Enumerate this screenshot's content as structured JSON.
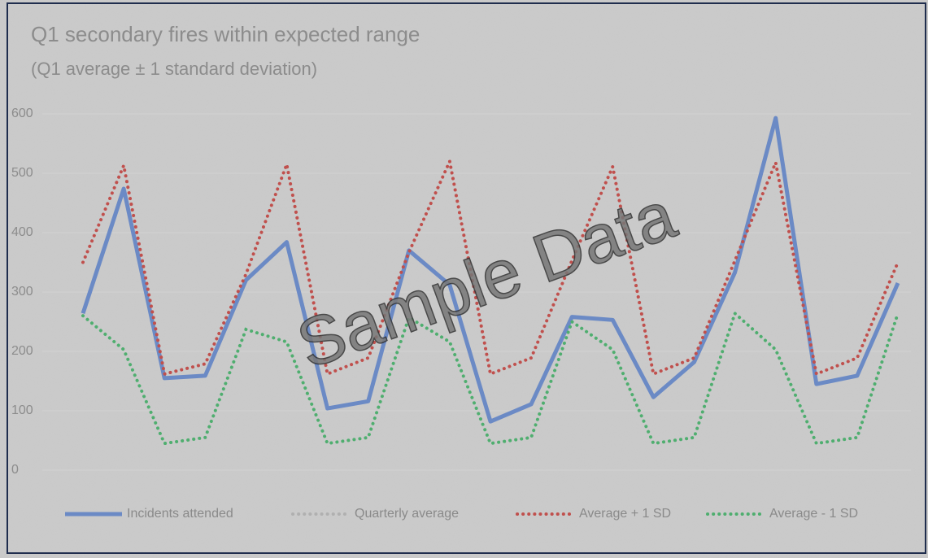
{
  "chart_data": {
    "type": "line",
    "title": "Q1 secondary fires within expected range",
    "subtitle": "(Q1 average ± 1 standard deviation)",
    "watermark": "Sample Data",
    "categories": [
      null,
      null,
      null,
      null,
      null,
      null,
      null,
      null,
      null,
      null,
      null,
      null,
      null,
      null,
      null,
      null,
      null,
      null,
      null,
      null,
      null
    ],
    "series": [
      {
        "name": "Incidents attended",
        "color": "#5b7fc4",
        "style": "solid",
        "values": [
          264,
          474,
          155,
          159,
          320,
          384,
          104,
          116,
          370,
          312,
          82,
          111,
          258,
          253,
          123,
          182,
          333,
          593,
          145,
          159,
          315
        ]
      },
      {
        "name": "Quarterly average",
        "color": "#b0b0b0",
        "style": "dotted",
        "values": [
          null,
          null,
          null,
          null,
          null,
          null,
          null,
          null,
          null,
          null,
          null,
          null,
          null,
          null,
          null,
          null,
          null,
          null,
          null,
          null,
          null
        ]
      },
      {
        "name": "Average + 1 SD",
        "color": "#c0504d",
        "style": "dotted",
        "values": [
          350,
          513,
          162,
          179,
          330,
          515,
          162,
          189,
          367,
          520,
          162,
          189,
          353,
          511,
          162,
          189,
          353,
          518,
          162,
          189,
          350
        ]
      },
      {
        "name": "Average - 1 SD",
        "color": "#4fae6f",
        "style": "dotted",
        "values": [
          260,
          203,
          45,
          55,
          237,
          216,
          45,
          55,
          257,
          216,
          45,
          55,
          250,
          203,
          45,
          55,
          264,
          203,
          45,
          55,
          264
        ]
      }
    ],
    "ylim": [
      0,
      600
    ],
    "yticks": [
      0,
      100,
      200,
      300,
      400,
      500,
      600
    ],
    "grid": true,
    "legend": "bottom"
  }
}
